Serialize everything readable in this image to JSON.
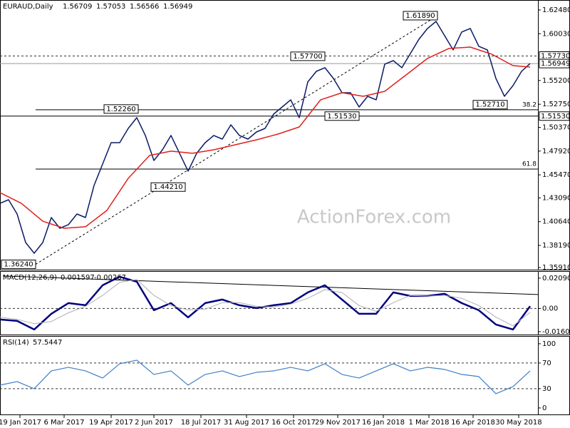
{
  "chart_data": [
    {
      "type": "line",
      "title": "EURAUD,Daily",
      "ohlc": [
        1.56709,
        1.57053,
        1.56566,
        1.56949
      ],
      "watermark": "ActionForex.com",
      "xlim": [
        0,
        377.5
      ],
      "ylim": [
        1.3569,
        1.6336
      ],
      "yticks": [
        {
          "value": 1.6248,
          "label": "1.62480"
        },
        {
          "value": 1.6003,
          "label": "1.60030"
        },
        {
          "value": 1.552,
          "label": "1.55200"
        },
        {
          "value": 1.5275,
          "label": "1.52750"
        },
        {
          "value": 1.5037,
          "label": "1.50370"
        },
        {
          "value": 1.4792,
          "label": "1.47920"
        },
        {
          "value": 1.4547,
          "label": "1.45470"
        },
        {
          "value": 1.4309,
          "label": "1.43090"
        },
        {
          "value": 1.4064,
          "label": "1.40640"
        },
        {
          "value": 1.3819,
          "label": "1.38190"
        },
        {
          "value": 1.3591,
          "label": "1.35910"
        }
      ],
      "series": [
        {
          "color": "#0b1a66",
          "x": [
            0,
            6,
            12,
            18,
            24,
            30,
            36,
            42,
            48,
            54,
            60,
            66,
            72,
            78,
            84,
            90,
            96,
            102,
            108,
            114,
            120,
            126,
            132,
            138,
            144,
            150,
            156,
            162,
            168,
            174,
            180,
            186,
            192,
            198,
            204,
            210,
            216,
            222,
            228,
            234,
            240,
            246,
            252,
            258,
            264,
            270,
            276,
            282,
            288,
            294,
            300,
            306,
            312,
            318,
            324,
            330,
            336,
            342,
            348,
            354,
            360,
            366,
            372
          ],
          "values": [
            1.4253,
            1.429,
            1.4143,
            1.3849,
            1.3738,
            1.3849,
            1.4106,
            1.3996,
            1.4033,
            1.4143,
            1.4106,
            1.4437,
            1.4658,
            1.4879,
            1.4879,
            1.5026,
            1.5137,
            1.4953,
            1.4695,
            1.4805,
            1.4953,
            1.4769,
            1.4585,
            1.4769,
            1.4879,
            1.4953,
            1.4916,
            1.5063,
            1.4953,
            1.4916,
            1.4989,
            1.5026,
            1.5173,
            1.5247,
            1.5321,
            1.5137,
            1.5505,
            1.5615,
            1.5652,
            1.5541,
            1.5394,
            1.5394,
            1.5247,
            1.5357,
            1.5321,
            1.5689,
            1.5725,
            1.5652,
            1.5799,
            1.5946,
            1.6057,
            1.613,
            1.5983,
            1.5836,
            1.602,
            1.6057,
            1.5873,
            1.5836,
            1.5541,
            1.5357,
            1.5468,
            1.5615,
            1.5695
          ]
        },
        {
          "color": "#e0201b",
          "x": [
            0,
            15,
            30,
            45,
            60,
            75,
            90,
            105,
            120,
            135,
            150,
            165,
            180,
            195,
            210,
            225,
            240,
            255,
            270,
            285,
            300,
            315,
            330,
            345,
            360,
            372
          ],
          "values": [
            1.4364,
            1.4253,
            1.4069,
            1.3996,
            1.4011,
            1.418,
            1.4511,
            1.4747,
            1.4791,
            1.4769,
            1.4805,
            1.4857,
            1.4908,
            1.4967,
            1.5041,
            1.5321,
            1.5394,
            1.5357,
            1.5409,
            1.5578,
            1.5748,
            1.5851,
            1.5865,
            1.5792,
            1.5674,
            1.5659
          ]
        }
      ],
      "levels": [
        {
          "value": 1.5773,
          "label": "1.57730",
          "style": "dashed"
        },
        {
          "value": 1.56949,
          "style": "current"
        },
        {
          "value": 1.5153,
          "label": "1.51530",
          "style": "solid"
        }
      ],
      "fib_levels": [
        {
          "ratio": 38.2,
          "price": 1.5218
        },
        {
          "ratio": 61.8,
          "price": 1.4607
        }
      ],
      "trendline": {
        "x": [
          25,
          307
        ],
        "values": [
          1.3624,
          1.6189
        ]
      },
      "annotations": [
        {
          "x": 307,
          "value": 1.6189,
          "label": "1.61890"
        },
        {
          "x": 228,
          "value": 1.577,
          "label": "1.57700"
        },
        {
          "x": 97,
          "value": 1.5226,
          "label": "1.52260"
        },
        {
          "x": 252,
          "value": 1.5153,
          "label": "1.51530"
        },
        {
          "x": 356,
          "value": 1.5271,
          "label": "1.52710"
        },
        {
          "x": 130,
          "value": 1.4421,
          "label": "1.44210"
        },
        {
          "x": 25,
          "value": 1.3624,
          "label": "1.36240"
        }
      ]
    },
    {
      "type": "line",
      "title": "MACD(12,26,9)",
      "readout": [
        0.001597,
        -0.00267
      ],
      "xlim": [
        0,
        377.5
      ],
      "ylim": [
        -0.018,
        0.0248
      ],
      "yticks": [
        0.020904,
        {
          "value": 0,
          "label": "0.00"
        },
        -0.016023
      ],
      "series": [
        {
          "color": "#000080",
          "width": 2.5,
          "x": [
            0,
            12,
            24,
            36,
            48,
            60,
            72,
            84,
            96,
            108,
            120,
            132,
            144,
            156,
            168,
            180,
            192,
            204,
            216,
            228,
            240,
            252,
            264,
            276,
            288,
            300,
            312,
            324,
            336,
            348,
            360,
            372
          ],
          "values": [
            -0.00763,
            -0.00862,
            -0.01452,
            -0.00369,
            0.00369,
            0.00222,
            0.016,
            0.02191,
            0.01846,
            -0.00123,
            0.00369,
            -0.00615,
            0.00369,
            0.00615,
            0.00222,
            0.00025,
            0.00222,
            0.00369,
            0.01108,
            0.016,
            0.00615,
            -0.00369,
            -0.00369,
            0.01108,
            0.00862,
            0.00862,
            0.01009,
            0.00369,
            -0.00123,
            -0.01108,
            -0.01452,
            0.0016
          ]
        },
        {
          "color": "#b0b0b0",
          "width": 1,
          "x": [
            0,
            12,
            24,
            36,
            48,
            60,
            72,
            84,
            96,
            108,
            120,
            132,
            144,
            156,
            168,
            180,
            192,
            204,
            216,
            228,
            240,
            252,
            264,
            276,
            288,
            300,
            312,
            324,
            336,
            348,
            360,
            372
          ],
          "values": [
            -0.006,
            -0.0075,
            -0.0105,
            -0.009,
            -0.003,
            0.0015,
            0.009,
            0.018,
            0.02,
            0.009,
            0.002,
            -0.001,
            -0.0005,
            0.004,
            0.004,
            0.0015,
            0.001,
            0.003,
            0.007,
            0.013,
            0.011,
            0.002,
            -0.002,
            0.004,
            0.009,
            0.0085,
            0.009,
            0.007,
            0.002,
            -0.006,
            -0.012,
            -0.00267
          ]
        }
      ],
      "levels": [
        {
          "value": 0,
          "style": "dashed"
        }
      ],
      "trendline": {
        "x": [
          2,
          377.5
        ],
        "values": [
          0.0224,
          0.0096
        ]
      }
    },
    {
      "type": "line",
      "title": "RSI(14)",
      "readout": [
        57.5447
      ],
      "xlim": [
        0,
        377.5
      ],
      "ylim": [
        -9,
        111
      ],
      "yticks": [
        100,
        70,
        30,
        0
      ],
      "xticks": [
        {
          "value": 14,
          "label": "19 Jan 2017"
        },
        {
          "value": 45,
          "label": "6 Mar 2017"
        },
        {
          "value": 78,
          "label": "19 Apr 2017"
        },
        {
          "value": 108,
          "label": "2 Jun 2017"
        },
        {
          "value": 141,
          "label": "18 Jul 2017"
        },
        {
          "value": 173,
          "label": "31 Aug 2017"
        },
        {
          "value": 206,
          "label": "16 Oct 2017"
        },
        {
          "value": 237,
          "label": "29 Nov 2017"
        },
        {
          "value": 269,
          "label": "16 Jan 2018"
        },
        {
          "value": 301,
          "label": "1 Mar 2018"
        },
        {
          "value": 332,
          "label": "16 Apr 2018"
        },
        {
          "value": 364,
          "label": "30 May 2018"
        }
      ],
      "series": [
        {
          "color": "#3f7fc6",
          "width": 1.2,
          "x": [
            0,
            12,
            24,
            36,
            48,
            60,
            72,
            84,
            96,
            108,
            120,
            132,
            144,
            156,
            168,
            180,
            192,
            204,
            216,
            228,
            240,
            252,
            264,
            276,
            288,
            300,
            312,
            324,
            336,
            348,
            360,
            372
          ],
          "values": [
            35.6,
            41.1,
            30,
            57.8,
            63.3,
            57.8,
            46.7,
            68.9,
            74.4,
            52.2,
            57.8,
            35.6,
            52.2,
            57.8,
            48.9,
            55.6,
            57.8,
            63.3,
            57.8,
            68.9,
            52.2,
            46.7,
            57.8,
            68.9,
            57.8,
            63.3,
            60,
            52.2,
            48.9,
            22.2,
            33.3,
            57.8
          ]
        }
      ],
      "levels": [
        {
          "value": 70,
          "style": "dashed"
        },
        {
          "value": 30,
          "style": "dashed"
        }
      ]
    }
  ]
}
